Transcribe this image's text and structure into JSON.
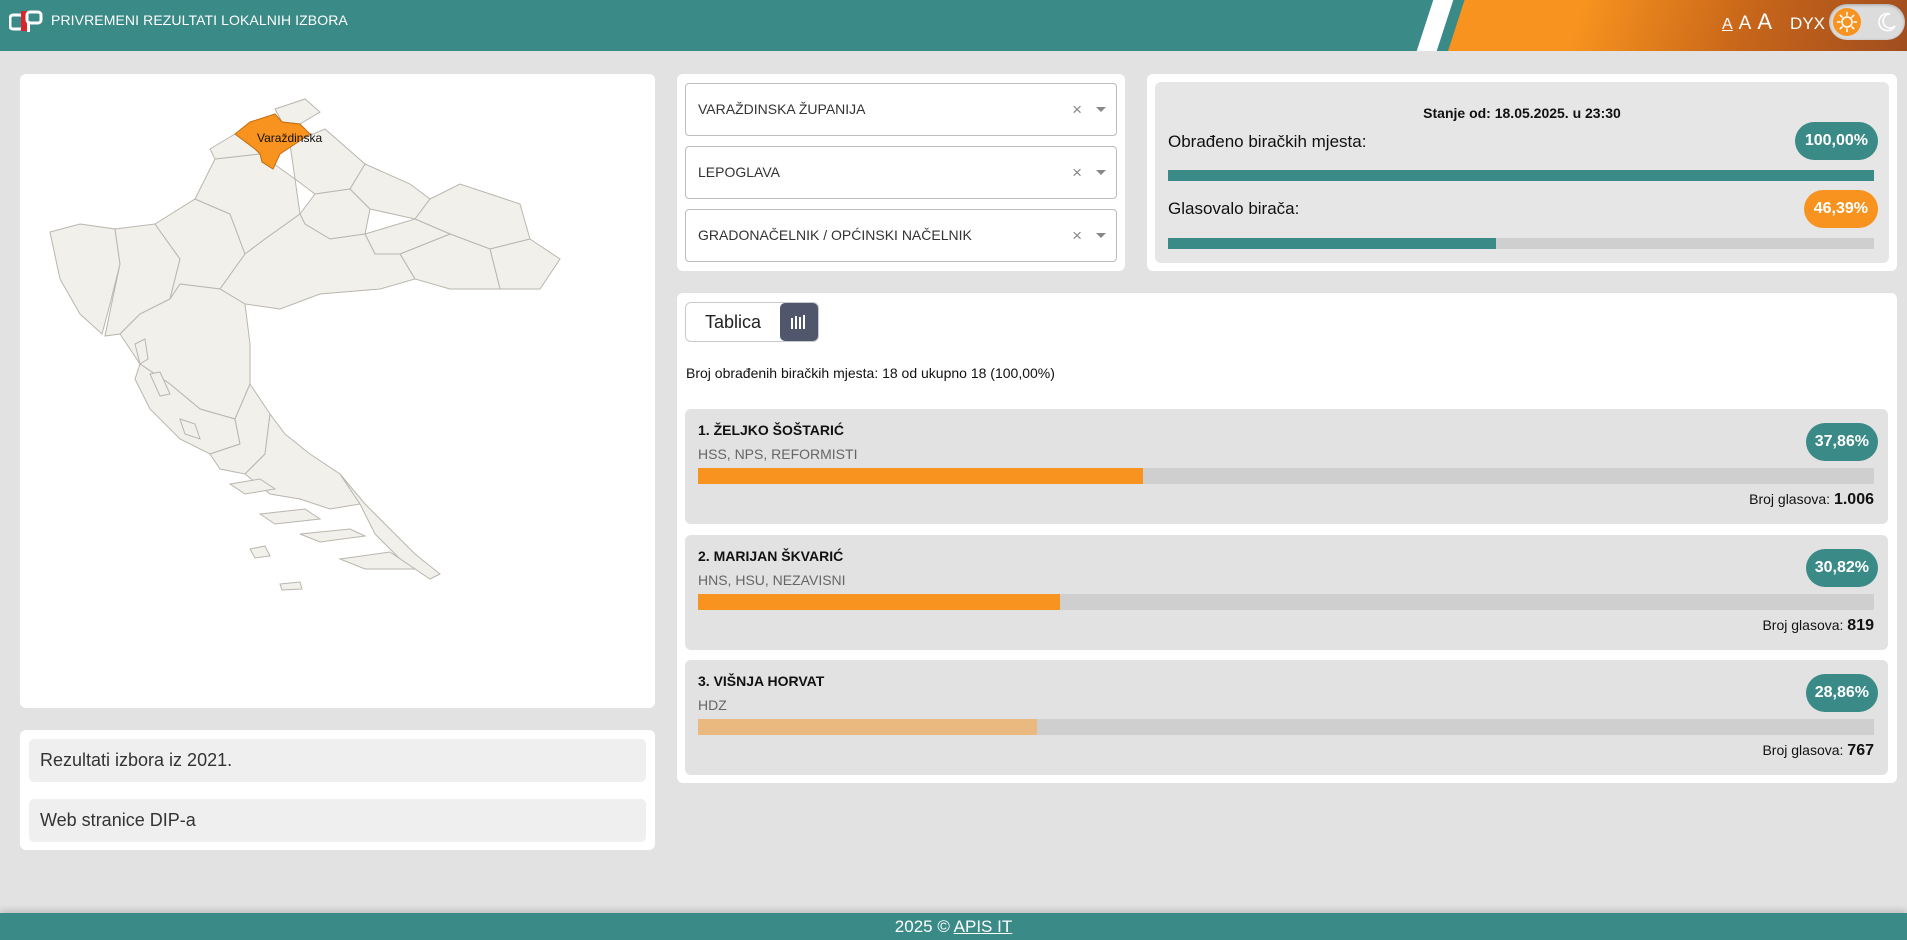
{
  "header": {
    "title": "PRIVREMENI REZULTATI LOKALNIH IZBORA",
    "font_sizes": [
      "A",
      "A",
      "A"
    ],
    "dyslexia_label": "DYX",
    "theme_icons": [
      "sun-icon",
      "moon-icon"
    ]
  },
  "map": {
    "highlighted_region": "Varaždinska",
    "highlight_color": "#f7931e"
  },
  "links": [
    {
      "label": "Rezultati izbora iz 2021."
    },
    {
      "label": "Web stranice DIP-a"
    }
  ],
  "selects": [
    {
      "value": "VARAŽDINSKA ŽUPANIJA",
      "clear": "×"
    },
    {
      "value": "LEPOGLAVA",
      "clear": "×"
    },
    {
      "value": "GRADONAČELNIK / OPĆINSKI NAČELNIK",
      "clear": "×"
    }
  ],
  "stats": {
    "stanje": "Stanje od: 18.05.2025. u 23:30",
    "obradeno_label": "Obrađeno biračkih mjesta:",
    "obradeno_value": "100,00%",
    "obradeno_fraction": 1.0,
    "glasovalo_label": "Glasovalo birača:",
    "glasovalo_value": "46,39%",
    "glasovalo_fraction": 0.4639
  },
  "results": {
    "tab_table_label": "Tablica",
    "tab_chart_icon": "bar-chart-icon",
    "broj_info": "Broj obrađenih biračkih mjesta: 18 od ukupno 18 (100,00%)",
    "votes_label": "Broj glasova:",
    "candidates": [
      {
        "name": "1. ŽELJKO ŠOŠTARIĆ",
        "parties": "HSS, NPS, REFORMISTI",
        "percent": "37,86%",
        "fraction": 0.3786,
        "votes": "1.006",
        "color": "#f7931e"
      },
      {
        "name": "2. MARIJAN ŠKVARIĆ",
        "parties": "HNS, HSU, NEZAVISNI",
        "percent": "30,82%",
        "fraction": 0.3082,
        "votes": "819",
        "color": "#f7931e"
      },
      {
        "name": "3. VIŠNJA HORVAT",
        "parties": "HDZ",
        "percent": "28,86%",
        "fraction": 0.2886,
        "votes": "767",
        "color": "#e9b97f"
      }
    ]
  },
  "footer": {
    "prefix": "2025 © ",
    "link": "APIS IT"
  },
  "colors": {
    "primary": "#3a8a87",
    "accent": "#f7931e"
  }
}
